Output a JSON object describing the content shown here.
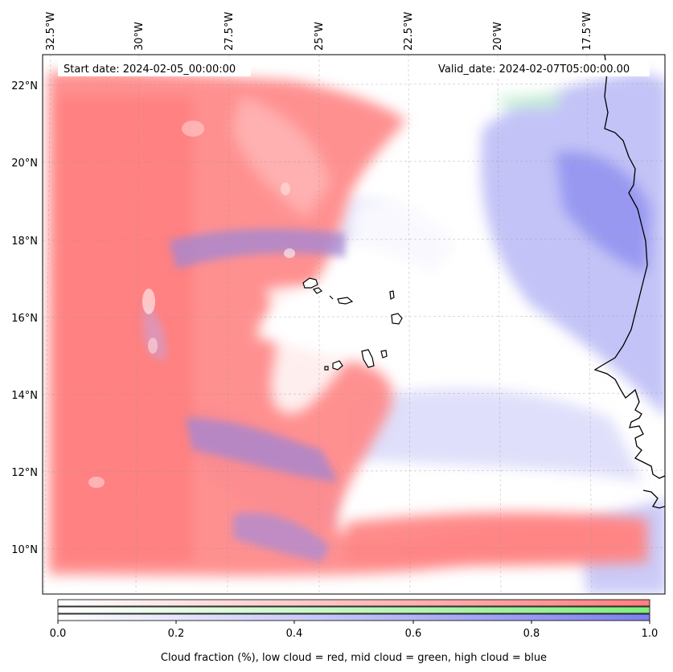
{
  "map": {
    "start_date": "Start date: 2024-02-05_00:00:00",
    "valid_date": "Valid_date: 2024-02-07T05:00:00.00",
    "lon_labels": [
      "32.5°W",
      "30°W",
      "27.5°W",
      "25°W",
      "22.5°W",
      "20°W",
      "17.5°W"
    ],
    "lat_labels": [
      "22°N",
      "20°N",
      "18°N",
      "16°N",
      "14°N",
      "12°N",
      "10°N"
    ]
  },
  "colorbar": {
    "ticks": [
      "0.0",
      "0.2",
      "0.4",
      "0.6",
      "0.8",
      "1.0"
    ],
    "label": "Cloud fraction (%), low cloud = red, mid cloud = green, high cloud = blue",
    "low_color": "#ff7f7f",
    "mid_color": "#7fef7f",
    "high_color": "#7f7fef"
  }
}
